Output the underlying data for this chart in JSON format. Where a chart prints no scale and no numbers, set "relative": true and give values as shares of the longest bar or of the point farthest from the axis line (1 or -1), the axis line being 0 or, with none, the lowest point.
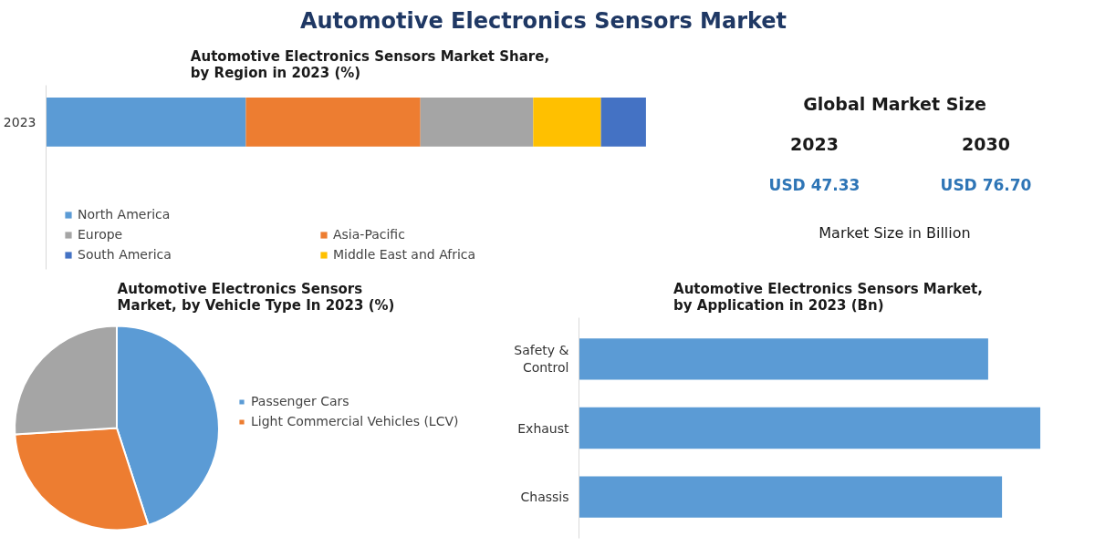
{
  "chart_data": [
    {
      "type": "other",
      "title": "Automotive Electronics Sensors Market"
    },
    {
      "type": "bar",
      "title": "Automotive Electronics Sensors Market Share,\nby Region in 2023 (%)",
      "categories": [
        "2023"
      ],
      "orientation": "horizontal",
      "stacked": true,
      "relative": true,
      "legend": "bottom",
      "series": [
        {
          "name": "North America",
          "color": "#5b9bd5",
          "values": [
            0.333
          ]
        },
        {
          "name": "Asia-Pacific",
          "color": "#ed7d31",
          "values": [
            0.291
          ]
        },
        {
          "name": "Europe",
          "color": "#a5a5a5",
          "values": [
            0.188
          ]
        },
        {
          "name": "Middle East and Africa",
          "color": "#ffc000",
          "values": [
            0.113
          ]
        },
        {
          "name": "South America",
          "color": "#4472c4",
          "values": [
            0.075
          ]
        }
      ]
    },
    {
      "type": "other",
      "title": "Global Market Size",
      "annotations": [
        "2023",
        "2030",
        "USD 47.33",
        "USD 76.70",
        "Market Size in Billion"
      ]
    },
    {
      "type": "pie",
      "title": "Automotive Electronics Sensors\nMarket, by Vehicle Type In 2023 (%)",
      "categories": [
        "Passenger Cars",
        "Light Commercial Vehicles (LCV)",
        null
      ],
      "values": [
        45,
        29,
        26
      ],
      "colors": [
        "#5b9bd5",
        "#ed7d31",
        "#a5a5a5"
      ],
      "legend": "right"
    },
    {
      "type": "bar",
      "title": "Automotive Electronics Sensors Market,\nby Application in 2023 (Bn)",
      "categories": [
        "Safety & Control",
        "Exhaust",
        "Chassis"
      ],
      "orientation": "horizontal",
      "relative": true,
      "color": "#5b9bd5",
      "values": [
        0.887,
        1,
        0.917
      ]
    }
  ]
}
